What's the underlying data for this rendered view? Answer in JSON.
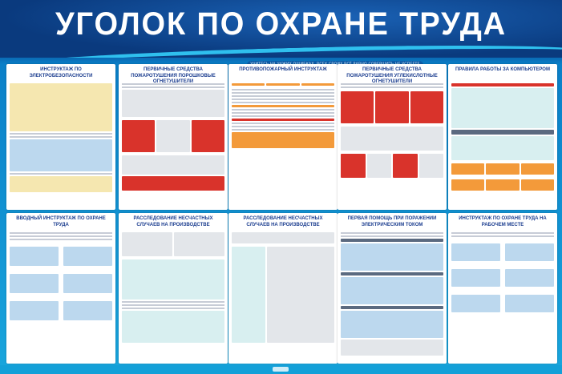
{
  "header": {
    "title": "УГОЛОК ПО ОХРАНЕ ТРУДА",
    "slogan": "УЧИТЕСЬ НА ЧУЖИХ ОШИБКАХ, ВСЕХ СВОИХ ВСЁ РАВНО СОВЕРШИТЬ НЕ УСПЕЕТЕ"
  },
  "colors": {
    "header_bg": "#0b3f86",
    "accent": "#19a6dd",
    "panel_title": "#1b3d8f"
  },
  "panels": [
    {
      "title": "ИНСТРУКТАЖ ПО ЭЛЕКТРОБЕЗОПАСНОСТИ"
    },
    {
      "title": "ПЕРВИЧНЫЕ СРЕДСТВА ПОЖАРОТУШЕНИЯ ПОРОШКОВЫЕ ОГНЕТУШИТЕЛИ"
    },
    {
      "title": "ПРОТИВОПОЖАРНЫЙ ИНСТРУКТАЖ"
    },
    {
      "title": "ПЕРВИЧНЫЕ СРЕДСТВА ПОЖАРОТУШЕНИЯ УГЛЕКИСЛОТНЫЕ ОГНЕТУШИТЕЛИ"
    },
    {
      "title": "ПРАВИЛА РАБОТЫ ЗА КОМПЬЮТЕРОМ"
    },
    {
      "title": "ВВОДНЫЙ ИНСТРУКТАЖ ПО ОХРАНЕ ТРУДА"
    },
    {
      "title": "РАССЛЕДОВАНИЕ НЕСЧАСТНЫХ СЛУЧАЕВ НА ПРОИЗВОДСТВЕ"
    },
    {
      "title": "РАССЛЕДОВАНИЕ НЕСЧАСТНЫХ СЛУЧАЕВ НА ПРОИЗВОДСТВЕ"
    },
    {
      "title": "ПЕРВАЯ ПОМОЩЬ ПРИ ПОРАЖЕНИИ ЭЛЕКТРИЧЕСКИМ ТОКОМ"
    },
    {
      "title": "ИНСТРУКТАЖ ПО ОХРАНЕ ТРУДА НА РАБОЧЕМ МЕСТЕ"
    }
  ]
}
